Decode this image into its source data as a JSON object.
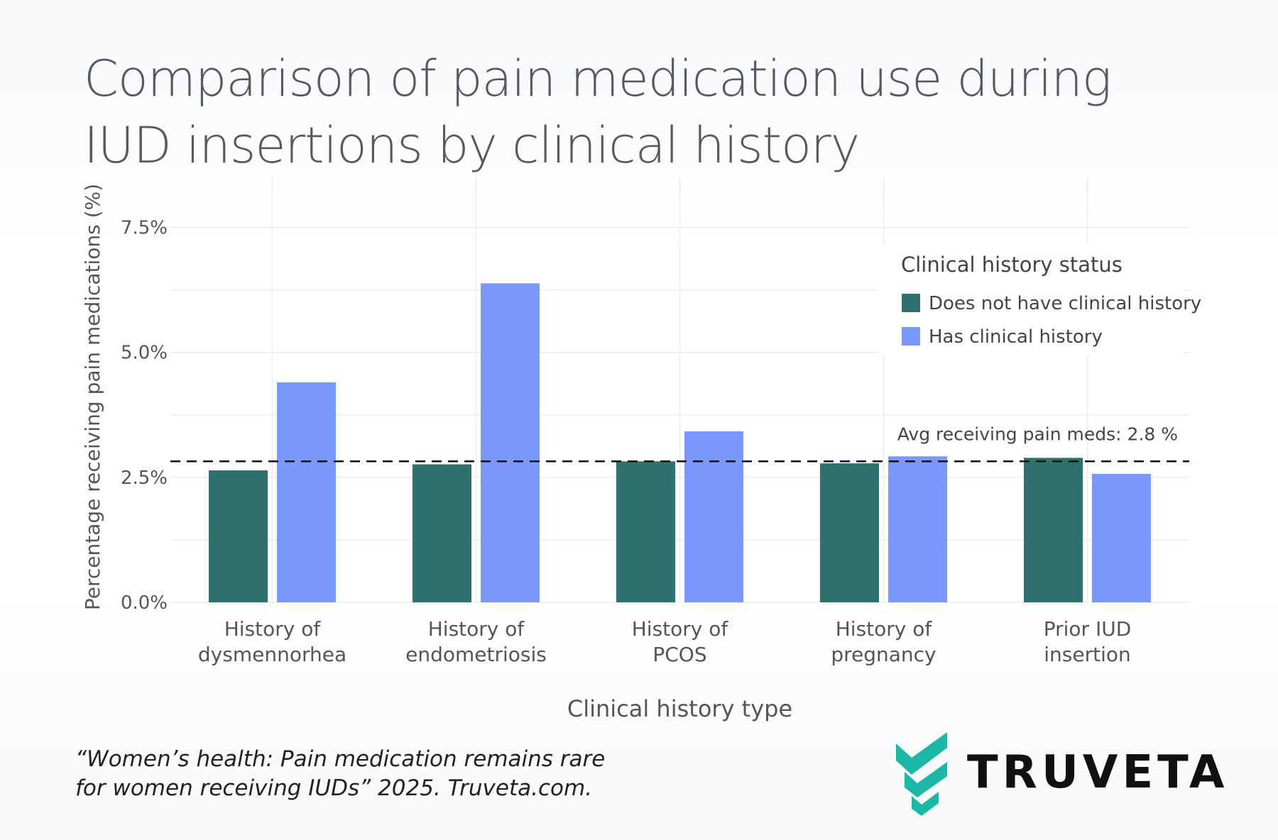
{
  "title": "Comparison of pain medication use during IUD insertions by clinical history",
  "citation": "“Women’s health: Pain medication remains rare for women receiving IUDs” 2025. Truveta.com.",
  "brand": {
    "name": "TRUVETA",
    "icon": "truveta-chevron-logo",
    "color": "#1bb8a8"
  },
  "chart_data": {
    "type": "bar",
    "xlabel": "Clinical history type",
    "ylabel": "Percentage receiving pain medications (%)",
    "ylim": [
      0,
      8.5
    ],
    "yticks": [
      0,
      2.5,
      5.0,
      7.5
    ],
    "ytick_labels": [
      "0.0%",
      "2.5%",
      "5.0%",
      "7.5%"
    ],
    "grid": true,
    "categories": [
      [
        "History of",
        "dysmennorhea"
      ],
      [
        "History of",
        "endometriosis"
      ],
      [
        "History of",
        "PCOS"
      ],
      [
        "History of",
        "pregnancy"
      ],
      [
        "Prior IUD",
        "insertion"
      ]
    ],
    "series": [
      {
        "name": "Does not have clinical history",
        "color": "#2e716e",
        "values": [
          2.64,
          2.76,
          2.82,
          2.78,
          2.89
        ]
      },
      {
        "name": "Has clinical history",
        "color": "#7b99fc",
        "values": [
          4.4,
          6.38,
          3.42,
          2.92,
          2.57
        ]
      }
    ],
    "legend": {
      "title": "Clinical history status",
      "position": "top-right"
    },
    "reference_line": {
      "value": 2.82,
      "label": "Avg receiving pain meds: 2.8 %",
      "style": "dashed"
    }
  }
}
